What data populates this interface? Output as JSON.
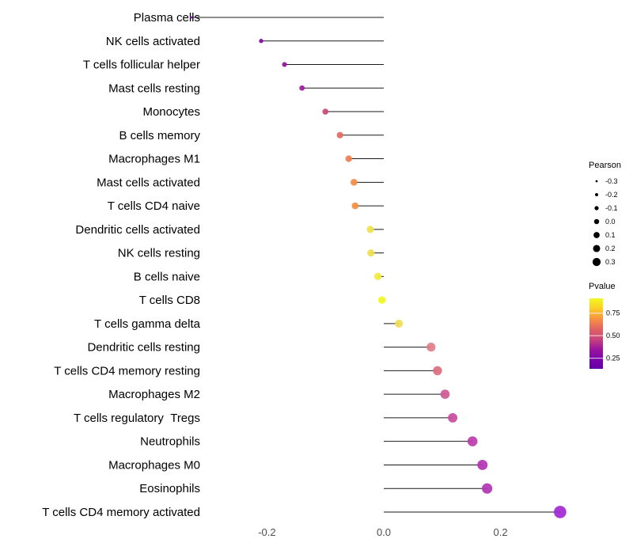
{
  "chart_data": {
    "type": "lollipop",
    "title": "",
    "xlabel": "",
    "ylabel": "",
    "xlim": [
      -0.36,
      0.33
    ],
    "x_ticks": [
      -0.2,
      0.0,
      0.2
    ],
    "x_tick_labels": [
      "-0.2",
      "0.0",
      "0.2"
    ],
    "grid": false,
    "points": [
      {
        "label": "Plasma cells",
        "pearson": -0.33,
        "pvalue_approx": 0.08,
        "color": "#7E03A8"
      },
      {
        "label": "NK cells activated",
        "pearson": -0.21,
        "pvalue_approx": 0.1,
        "color": "#8606A6"
      },
      {
        "label": "T cells follicular helper",
        "pearson": -0.17,
        "pvalue_approx": 0.14,
        "color": "#9511A1"
      },
      {
        "label": "Mast cells resting",
        "pearson": -0.14,
        "pvalue_approx": 0.17,
        "color": "#9F1A9F"
      },
      {
        "label": "Monocytes",
        "pearson": -0.1,
        "pvalue_approx": 0.33,
        "color": "#CA4679"
      },
      {
        "label": "B cells memory",
        "pearson": -0.075,
        "pvalue_approx": 0.47,
        "color": "#E4685F"
      },
      {
        "label": "Macrophages M1",
        "pearson": -0.06,
        "pvalue_approx": 0.55,
        "color": "#EF7E4E"
      },
      {
        "label": "Mast cells activated",
        "pearson": -0.051,
        "pvalue_approx": 0.6,
        "color": "#F48A44"
      },
      {
        "label": "T cells CD4 naive",
        "pearson": -0.049,
        "pvalue_approx": 0.61,
        "color": "#F48F3E"
      },
      {
        "label": "Dendritic cells activated",
        "pearson": -0.023,
        "pvalue_approx": 0.84,
        "color": "#EFE24F"
      },
      {
        "label": "NK cells resting",
        "pearson": -0.022,
        "pvalue_approx": 0.83,
        "color": "#F0E04E"
      },
      {
        "label": "B cells naive",
        "pearson": -0.01,
        "pvalue_approx": 0.9,
        "color": "#F3EC3A"
      },
      {
        "label": "T cells CD8",
        "pearson": -0.003,
        "pvalue_approx": 0.97,
        "color": "#F0F921"
      },
      {
        "label": "T cells gamma delta",
        "pearson": 0.026,
        "pvalue_approx": 0.81,
        "color": "#EFDC52"
      },
      {
        "label": "Dendritic cells resting",
        "pearson": 0.081,
        "pvalue_approx": 0.5,
        "color": "#DF7E89"
      },
      {
        "label": "T cells CD4 memory resting",
        "pearson": 0.092,
        "pvalue_approx": 0.46,
        "color": "#DC6E80"
      },
      {
        "label": "Macrophages M2",
        "pearson": 0.105,
        "pvalue_approx": 0.4,
        "color": "#CF5A95"
      },
      {
        "label": "T cells regulatory  Tregs",
        "pearson": 0.118,
        "pvalue_approx": 0.36,
        "color": "#C84C9E"
      },
      {
        "label": "Neutrophils",
        "pearson": 0.152,
        "pvalue_approx": 0.29,
        "color": "#BB3CAB"
      },
      {
        "label": "Macrophages M0",
        "pearson": 0.169,
        "pvalue_approx": 0.26,
        "color": "#B334B2"
      },
      {
        "label": "Eosinophils",
        "pearson": 0.177,
        "pvalue_approx": 0.26,
        "color": "#B134B4"
      },
      {
        "label": "T cells CD4 memory activated",
        "pearson": 0.302,
        "pvalue_approx": 0.12,
        "color": "#A228D3"
      }
    ],
    "legend_size": {
      "title": "Pearson",
      "values": [
        -0.3,
        -0.2,
        -0.1,
        0.0,
        0.1,
        0.2,
        0.3
      ],
      "labels": [
        "-0.3",
        "-0.2",
        "-0.1",
        "0.0",
        "0.1",
        "0.2",
        "0.3"
      ]
    },
    "legend_color": {
      "title": "Pvalue",
      "tick_labels": [
        "0.75",
        "0.50",
        "0.25"
      ],
      "gradient_top_to_bottom": [
        "#F0F921",
        "#FCCE25",
        "#F89441",
        "#E16462",
        "#CC4778",
        "#9C179E",
        "#7E03A8",
        "#6100A7"
      ]
    }
  },
  "colors": {
    "background": "#ffffff",
    "stem": "#1a1a1a",
    "label": "#000000",
    "tick_label": "#4d4d4d",
    "legend_dot": "#000000"
  }
}
